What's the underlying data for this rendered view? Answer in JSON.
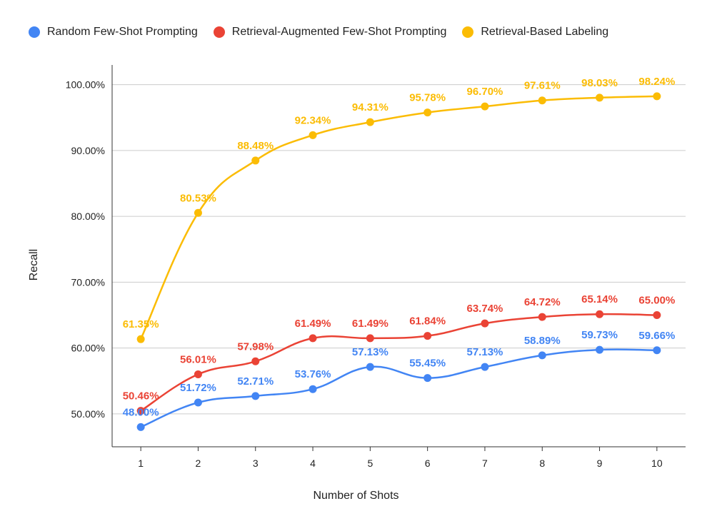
{
  "chart_data": {
    "type": "line",
    "title": "",
    "xlabel": "Number of Shots",
    "ylabel": "Recall",
    "x": [
      1,
      2,
      3,
      4,
      5,
      6,
      7,
      8,
      9,
      10
    ],
    "ylim": [
      45,
      103
    ],
    "yticks": [
      50,
      60,
      70,
      80,
      90,
      100
    ],
    "ytick_labels": [
      "50.00%",
      "60.00%",
      "70.00%",
      "80.00%",
      "90.00%",
      "100.00%"
    ],
    "grid": true,
    "legend_position": "top",
    "series": [
      {
        "name": "Random Few-Shot Prompting",
        "color": "#4285F4",
        "values": [
          48.0,
          51.72,
          52.71,
          53.76,
          57.13,
          55.45,
          57.13,
          58.89,
          59.73,
          59.66
        ],
        "labels": [
          "48.00%",
          "51.72%",
          "52.71%",
          "53.76%",
          "57.13%",
          "55.45%",
          "57.13%",
          "58.89%",
          "59.73%",
          "59.66%"
        ]
      },
      {
        "name": "Retrieval-Augmented Few-Shot Prompting",
        "color": "#EA4335",
        "values": [
          50.46,
          56.01,
          57.98,
          61.49,
          61.49,
          61.84,
          63.74,
          64.72,
          65.14,
          65.0
        ],
        "labels": [
          "50.46%",
          "56.01%",
          "57.98%",
          "61.49%",
          "61.49%",
          "61.84%",
          "63.74%",
          "64.72%",
          "65.14%",
          "65.00%"
        ]
      },
      {
        "name": "Retrieval-Based Labeling",
        "color": "#FBBC04",
        "values": [
          61.35,
          80.53,
          88.48,
          92.34,
          94.31,
          95.78,
          96.7,
          97.61,
          98.03,
          98.24
        ],
        "labels": [
          "61.35%",
          "80.53%",
          "88.48%",
          "92.34%",
          "94.31%",
          "95.78%",
          "96.70%",
          "97.61%",
          "98.03%",
          "98.24%"
        ]
      }
    ]
  }
}
